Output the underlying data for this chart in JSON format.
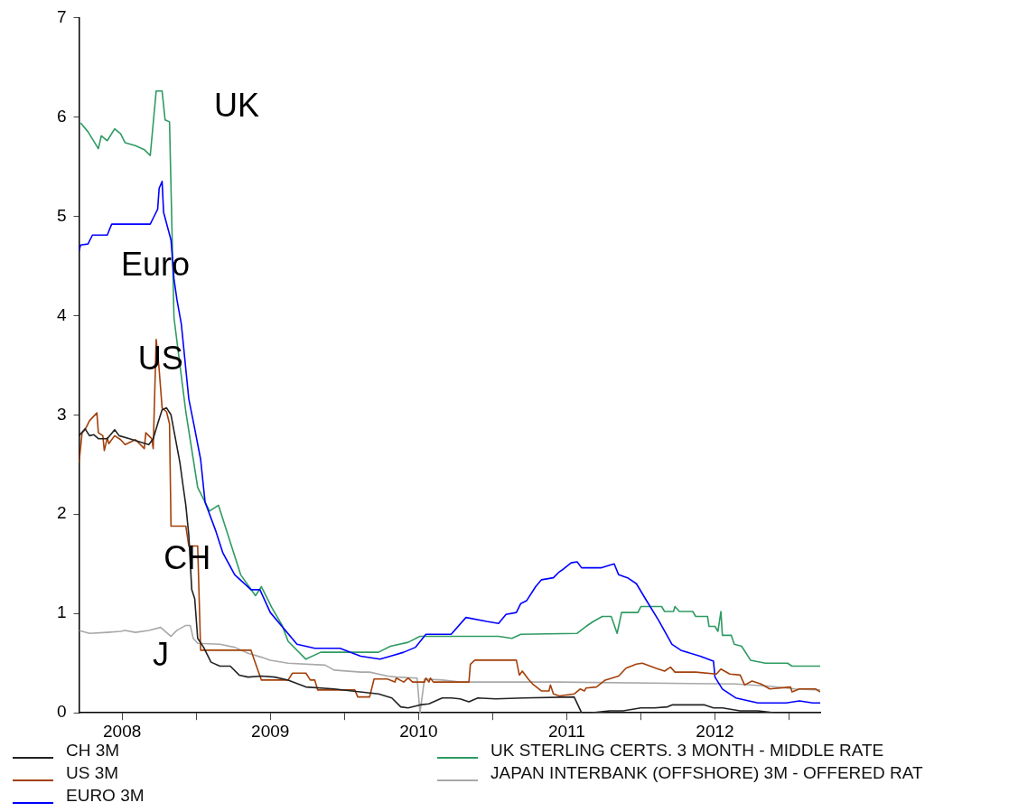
{
  "chart_data": {
    "type": "line",
    "xlim": [
      2008.21,
      2013.21
    ],
    "ylim": [
      0,
      7
    ],
    "xticks": [
      {
        "value": 2008.5,
        "label": "2008"
      },
      {
        "value": 2009,
        "label": null
      },
      {
        "value": 2009.5,
        "label": "2009"
      },
      {
        "value": 2010,
        "label": null
      },
      {
        "value": 2010.5,
        "label": "2010"
      },
      {
        "value": 2011,
        "label": null
      },
      {
        "value": 2011.5,
        "label": "2011"
      },
      {
        "value": 2012,
        "label": null
      },
      {
        "value": 2012.5,
        "label": "2012"
      },
      {
        "value": 2013,
        "label": null
      }
    ],
    "yticks": [
      0,
      1,
      2,
      3,
      4,
      5,
      6,
      7
    ],
    "legend": "bottom",
    "marker": "none",
    "line_style": "solid",
    "annotations": [
      "UK",
      "Euro",
      {
        "text": "US",
        "x": 2008.76,
        "y": 3.55
      },
      {
        "text": "CH",
        "x": 2008.94,
        "y": 1.54
      },
      "J"
    ],
    "series": [
      {
        "name": "CH 3M",
        "color": "#222222",
        "x": [
          2008.21,
          2008.25,
          2008.28,
          2008.31,
          2008.34,
          2008.4,
          2008.45,
          2008.48,
          2008.55,
          2008.68,
          2008.71,
          2008.74,
          2008.77,
          2008.8,
          2008.83,
          2008.86,
          2008.89,
          2008.91,
          2008.93,
          2008.95,
          2008.97,
          2008.99,
          2009.01,
          2009.05,
          2009.1,
          2009.16,
          2009.23,
          2009.29,
          2009.35,
          2009.44,
          2009.53,
          2009.62,
          2009.74,
          2009.93,
          2010.05,
          2010.23,
          2010.32,
          2010.38,
          2010.43,
          2010.51,
          2010.57,
          2010.66,
          2010.72,
          2010.78,
          2010.84,
          2010.9,
          2011.02,
          2011.21,
          2011.55,
          2011.6,
          2011.66,
          2011.73,
          2011.79,
          2011.88,
          2012,
          2012.09,
          2012.18,
          2012.21,
          2012.43,
          2012.49,
          2012.55,
          2012.67,
          2012.79,
          2012.91,
          2013.02,
          2013.21
        ],
        "values": [
          2.79,
          2.86,
          2.79,
          2.8,
          2.76,
          2.76,
          2.85,
          2.79,
          2.76,
          2.7,
          2.76,
          2.91,
          3.05,
          3.07,
          3,
          2.76,
          2.52,
          2.3,
          2.09,
          1.79,
          1.24,
          1.15,
          0.75,
          0.66,
          0.51,
          0.47,
          0.47,
          0.38,
          0.36,
          0.37,
          0.36,
          0.33,
          0.26,
          0.24,
          0.22,
          0.19,
          0.15,
          0.06,
          0.05,
          0.08,
          0.09,
          0.15,
          0.15,
          0.14,
          0.11,
          0.15,
          0.14,
          0.15,
          0.16,
          0,
          0,
          0.01,
          0.02,
          0.02,
          0.05,
          0.05,
          0.06,
          0.08,
          0.08,
          0.05,
          0.05,
          0.02,
          0.02,
          0,
          0,
          0
        ]
      },
      {
        "name": "US 3M",
        "color": "#a3400a",
        "x": [
          2008.21,
          2008.23,
          2008.25,
          2008.28,
          2008.33,
          2008.34,
          2008.37,
          2008.38,
          2008.4,
          2008.41,
          2008.45,
          2008.49,
          2008.52,
          2008.59,
          2008.65,
          2008.66,
          2008.7,
          2008.71,
          2008.73,
          2008.75,
          2008.77,
          2008.8,
          2008.82,
          2008.83,
          2008.93,
          2008.95,
          2009.01,
          2009.03,
          2009.37,
          2009.39,
          2009.44,
          2009.62,
          2009.65,
          2009.74,
          2009.77,
          2009.8,
          2009.82,
          2010.07,
          2010.09,
          2010.17,
          2010.2,
          2010.29,
          2010.34,
          2010.35,
          2010.4,
          2010.43,
          2010.46,
          2010.54,
          2010.55,
          2010.57,
          2010.58,
          2010.6,
          2010.84,
          2010.85,
          2010.88,
          2011.16,
          2011.18,
          2011.2,
          2011.24,
          2011.27,
          2011.33,
          2011.38,
          2011.39,
          2011.41,
          2011.45,
          2011.55,
          2011.59,
          2011.62,
          2011.63,
          2011.7,
          2011.76,
          2011.85,
          2011.9,
          2011.97,
          2012.01,
          2012.1,
          2012.16,
          2012.2,
          2012.23,
          2012.37,
          2012.51,
          2012.54,
          2012.6,
          2012.67,
          2012.7,
          2012.75,
          2012.81,
          2012.87,
          2013.01,
          2013.02,
          2013.07,
          2013.18,
          2013.21
        ],
        "values": [
          2.52,
          2.82,
          2.85,
          2.94,
          3.02,
          2.82,
          2.79,
          2.64,
          2.77,
          2.71,
          2.79,
          2.75,
          2.7,
          2.75,
          2.66,
          2.82,
          2.76,
          2.66,
          3.76,
          3.46,
          3.07,
          3.03,
          2.91,
          1.88,
          1.88,
          1.68,
          1.68,
          0.63,
          0.63,
          0.54,
          0.33,
          0.33,
          0.4,
          0.4,
          0.33,
          0.33,
          0.23,
          0.23,
          0.16,
          0.16,
          0.34,
          0.34,
          0.31,
          0.35,
          0.31,
          0.35,
          0.31,
          0.31,
          0.35,
          0.31,
          0.35,
          0.31,
          0.31,
          0.49,
          0.53,
          0.53,
          0.38,
          0.42,
          0.34,
          0.29,
          0.22,
          0.22,
          0.28,
          0.19,
          0.17,
          0.19,
          0.24,
          0.22,
          0.25,
          0.26,
          0.33,
          0.37,
          0.45,
          0.49,
          0.5,
          0.45,
          0.42,
          0.46,
          0.41,
          0.41,
          0.39,
          0.44,
          0.39,
          0.38,
          0.28,
          0.32,
          0.29,
          0.24,
          0.26,
          0.21,
          0.24,
          0.24,
          0.21
        ]
      },
      {
        "name": "EURO 3M",
        "color": "#0000ff",
        "x": [
          2008.21,
          2008.22,
          2008.27,
          2008.3,
          2008.4,
          2008.43,
          2008.69,
          2008.72,
          2008.74,
          2008.75,
          2008.77,
          2008.78,
          2008.83,
          2008.85,
          2008.87,
          2008.9,
          2008.95,
          2008.99,
          2009.03,
          2009.06,
          2009.13,
          2009.18,
          2009.26,
          2009.37,
          2009.43,
          2009.5,
          2009.68,
          2009.8,
          2009.97,
          2010.11,
          2010.24,
          2010.31,
          2010.4,
          2010.48,
          2010.55,
          2010.64,
          2010.72,
          2010.82,
          2010.96,
          2011.04,
          2011.09,
          2011.16,
          2011.19,
          2011.23,
          2011.29,
          2011.33,
          2011.41,
          2011.45,
          2011.48,
          2011.53,
          2011.57,
          2011.6,
          2011.73,
          2011.82,
          2011.85,
          2011.91,
          2011.97,
          2012.03,
          2012.12,
          2012.21,
          2012.27,
          2012.4,
          2012.49,
          2012.5,
          2012.55,
          2012.64,
          2012.79,
          2012.98,
          2013.07,
          2013.16,
          2013.21
        ],
        "values": [
          4.65,
          4.71,
          4.72,
          4.81,
          4.81,
          4.92,
          4.92,
          5.01,
          5.07,
          5.28,
          5.35,
          5.04,
          4.76,
          4.37,
          4.16,
          3.91,
          3.16,
          2.86,
          2.55,
          2.12,
          1.84,
          1.61,
          1.39,
          1.24,
          1.24,
          1.01,
          0.69,
          0.65,
          0.65,
          0.57,
          0.54,
          0.57,
          0.61,
          0.66,
          0.79,
          0.79,
          0.79,
          0.96,
          0.92,
          0.9,
          0.99,
          1.01,
          1.1,
          1.13,
          1.27,
          1.34,
          1.36,
          1.42,
          1.45,
          1.51,
          1.52,
          1.46,
          1.46,
          1.5,
          1.39,
          1.36,
          1.3,
          1.15,
          0.93,
          0.69,
          0.63,
          0.57,
          0.52,
          0.36,
          0.24,
          0.15,
          0.1,
          0.1,
          0.12,
          0.1,
          0.1
        ]
      },
      {
        "name": "UK STERLING CERTS. 3 MONTH - MIDDLE RATE",
        "color": "#2e9b62",
        "x": [
          2008.22,
          2008.27,
          2008.34,
          2008.36,
          2008.4,
          2008.45,
          2008.49,
          2008.52,
          2008.59,
          2008.65,
          2008.69,
          2008.73,
          2008.77,
          2008.79,
          2008.82,
          2008.85,
          2008.93,
          2009.01,
          2009.09,
          2009.15,
          2009.3,
          2009.4,
          2009.44,
          2009.51,
          2009.58,
          2009.62,
          2009.74,
          2009.84,
          2010.23,
          2010.31,
          2010.43,
          2010.51,
          2011.04,
          2011.13,
          2011.19,
          2011.57,
          2011.63,
          2011.68,
          2011.74,
          2011.8,
          2011.84,
          2011.87,
          2011.98,
          2012,
          2012.14,
          2012.16,
          2012.22,
          2012.23,
          2012.26,
          2012.35,
          2012.37,
          2012.45,
          2012.46,
          2012.5,
          2012.52,
          2012.54,
          2012.55,
          2012.61,
          2012.63,
          2012.68,
          2012.74,
          2012.84,
          2012.99,
          2013.02,
          2013.21
        ],
        "values": [
          5.94,
          5.85,
          5.68,
          5.81,
          5.76,
          5.88,
          5.83,
          5.74,
          5.71,
          5.67,
          5.61,
          6.26,
          6.26,
          5.97,
          5.95,
          3.98,
          3.03,
          2.27,
          2.03,
          2.09,
          1.39,
          1.18,
          1.27,
          1.06,
          0.88,
          0.72,
          0.54,
          0.61,
          0.61,
          0.67,
          0.71,
          0.77,
          0.77,
          0.75,
          0.79,
          0.8,
          0.87,
          0.92,
          0.97,
          0.97,
          0.8,
          1.01,
          1.01,
          1.07,
          1.07,
          1.02,
          1.02,
          1.07,
          1.02,
          1.02,
          0.97,
          0.97,
          0.87,
          0.87,
          0.82,
          1.02,
          0.78,
          0.78,
          0.69,
          0.67,
          0.53,
          0.5,
          0.5,
          0.47,
          0.47
        ]
      },
      {
        "name": "JAPAN INTERBANK (OFFSHORE) 3M - OFFERED RAT",
        "color": "#a8a8a8",
        "x": [
          2008.21,
          2008.28,
          2008.4,
          2008.49,
          2008.52,
          2008.59,
          2008.68,
          2008.76,
          2008.83,
          2008.87,
          2008.93,
          2008.96,
          2008.98,
          2009.01,
          2009.16,
          2009.26,
          2009.35,
          2009.44,
          2009.5,
          2009.62,
          2009.87,
          2009.93,
          2010.11,
          2010.17,
          2010.29,
          2010.35,
          2010.49,
          2010.51,
          2010.54,
          2010.66,
          2010.78,
          2011.45,
          2012.64,
          2012.85,
          2013.04,
          2013.21
        ],
        "values": [
          0.83,
          0.8,
          0.81,
          0.82,
          0.83,
          0.81,
          0.83,
          0.86,
          0.77,
          0.83,
          0.88,
          0.88,
          0.75,
          0.7,
          0.69,
          0.66,
          0.6,
          0.56,
          0.53,
          0.5,
          0.48,
          0.43,
          0.41,
          0.41,
          0.37,
          0.36,
          0.35,
          0,
          0.34,
          0.33,
          0.31,
          0.31,
          0.29,
          0.27,
          0.24,
          0.23
        ]
      }
    ]
  }
}
